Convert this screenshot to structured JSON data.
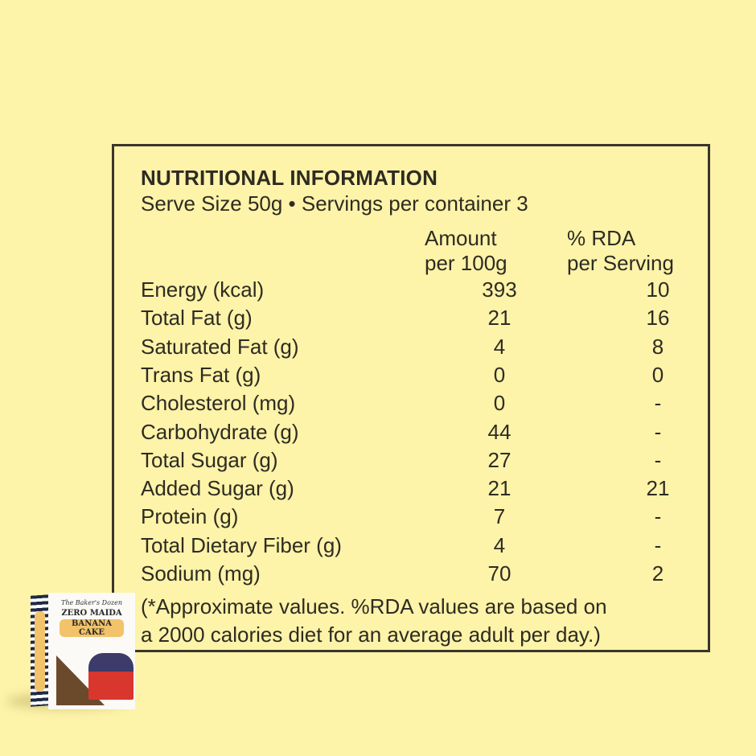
{
  "panel": {
    "title": "NUTRITIONAL INFORMATION",
    "subtitle": "Serve Size 50g • Servings per container 3",
    "columns": {
      "amount": [
        "Amount",
        "per 100g"
      ],
      "rda": [
        "% RDA",
        "per Serving"
      ]
    },
    "rows": [
      {
        "label": "Energy (kcal)",
        "amount": "393",
        "rda": "10"
      },
      {
        "label": "Total Fat (g)",
        "amount": "21",
        "rda": "16"
      },
      {
        "label": "Saturated Fat (g)",
        "amount": "4",
        "rda": "8"
      },
      {
        "label": "Trans Fat (g)",
        "amount": "0",
        "rda": "0"
      },
      {
        "label": "Cholesterol (mg)",
        "amount": "0",
        "rda": "-"
      },
      {
        "label": "Carbohydrate (g)",
        "amount": "44",
        "rda": "-"
      },
      {
        "label": "Total Sugar (g)",
        "amount": "27",
        "rda": "-"
      },
      {
        "label": "Added Sugar (g)",
        "amount": "21",
        "rda": "21"
      },
      {
        "label": "Protein (g)",
        "amount": "7",
        "rda": "-"
      },
      {
        "label": "Total Dietary Fiber (g)",
        "amount": "4",
        "rda": "-"
      },
      {
        "label": "Sodium (mg)",
        "amount": "70",
        "rda": "2"
      }
    ],
    "note": [
      "(*Approximate values. %RDA values are based on",
      "a 2000 calories diet for an average adult per day.)"
    ]
  },
  "package": {
    "brand": "The Baker's Dozen",
    "line1": "ZERO MAIDA",
    "line2": "BANANA CAKE"
  },
  "colors": {
    "background": "#fdf3a9",
    "text": "#2e2b22",
    "border": "#3a362c"
  }
}
